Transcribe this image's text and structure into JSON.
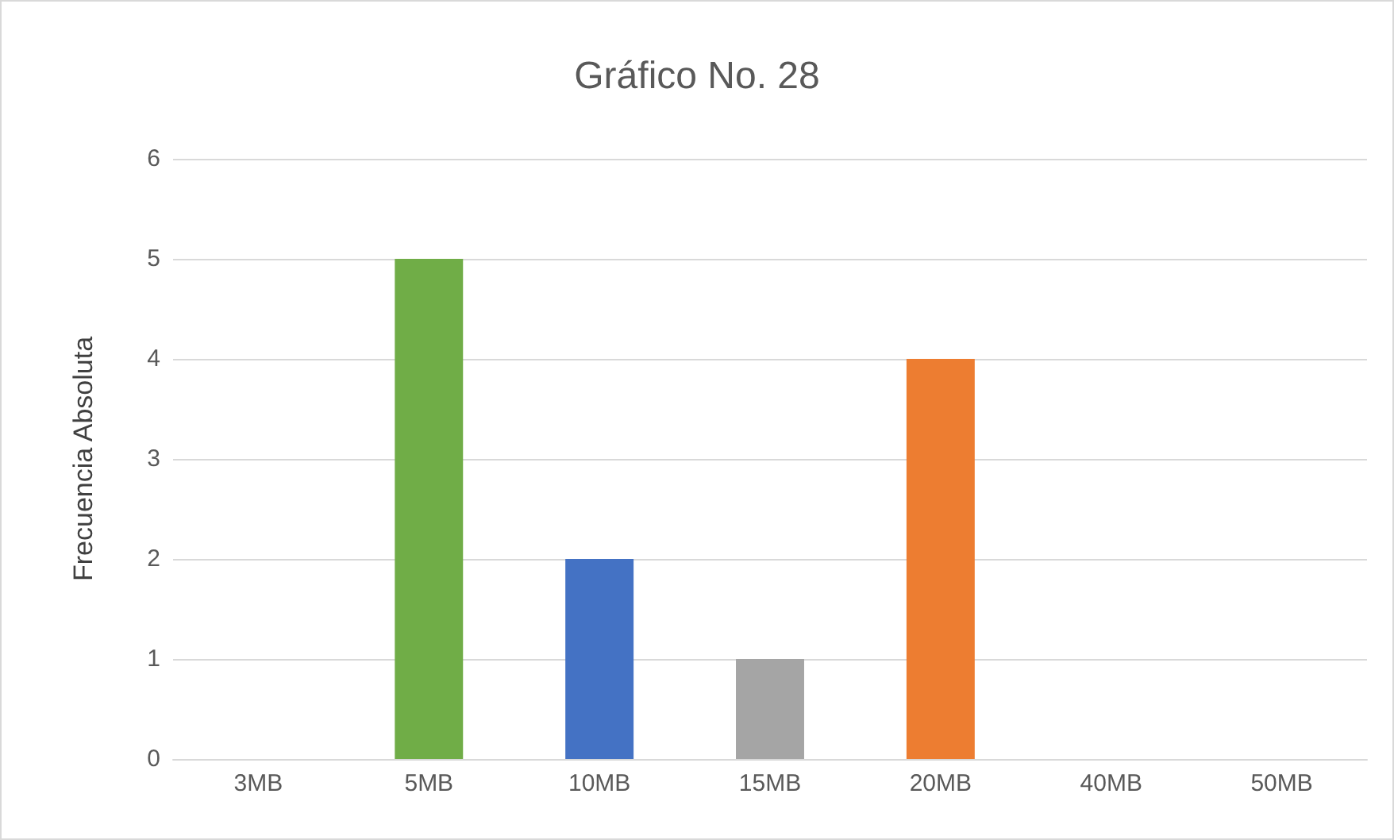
{
  "chart_data": {
    "type": "bar",
    "title": "Gráfico No. 28",
    "ylabel": "Frecuencia Absoluta",
    "categories": [
      "3MB",
      "5MB",
      "10MB",
      "15MB",
      "20MB",
      "40MB",
      "50MB"
    ],
    "values": [
      0,
      5,
      2,
      1,
      4,
      0,
      0
    ],
    "colors": [
      "#5b9bd5",
      "#70ad47",
      "#4472c4",
      "#a5a5a5",
      "#ed7d31",
      "#ffc000",
      "#264478"
    ],
    "ylim": [
      0,
      6
    ],
    "yticks": [
      0,
      1,
      2,
      3,
      4,
      5,
      6
    ],
    "grid": "y"
  }
}
